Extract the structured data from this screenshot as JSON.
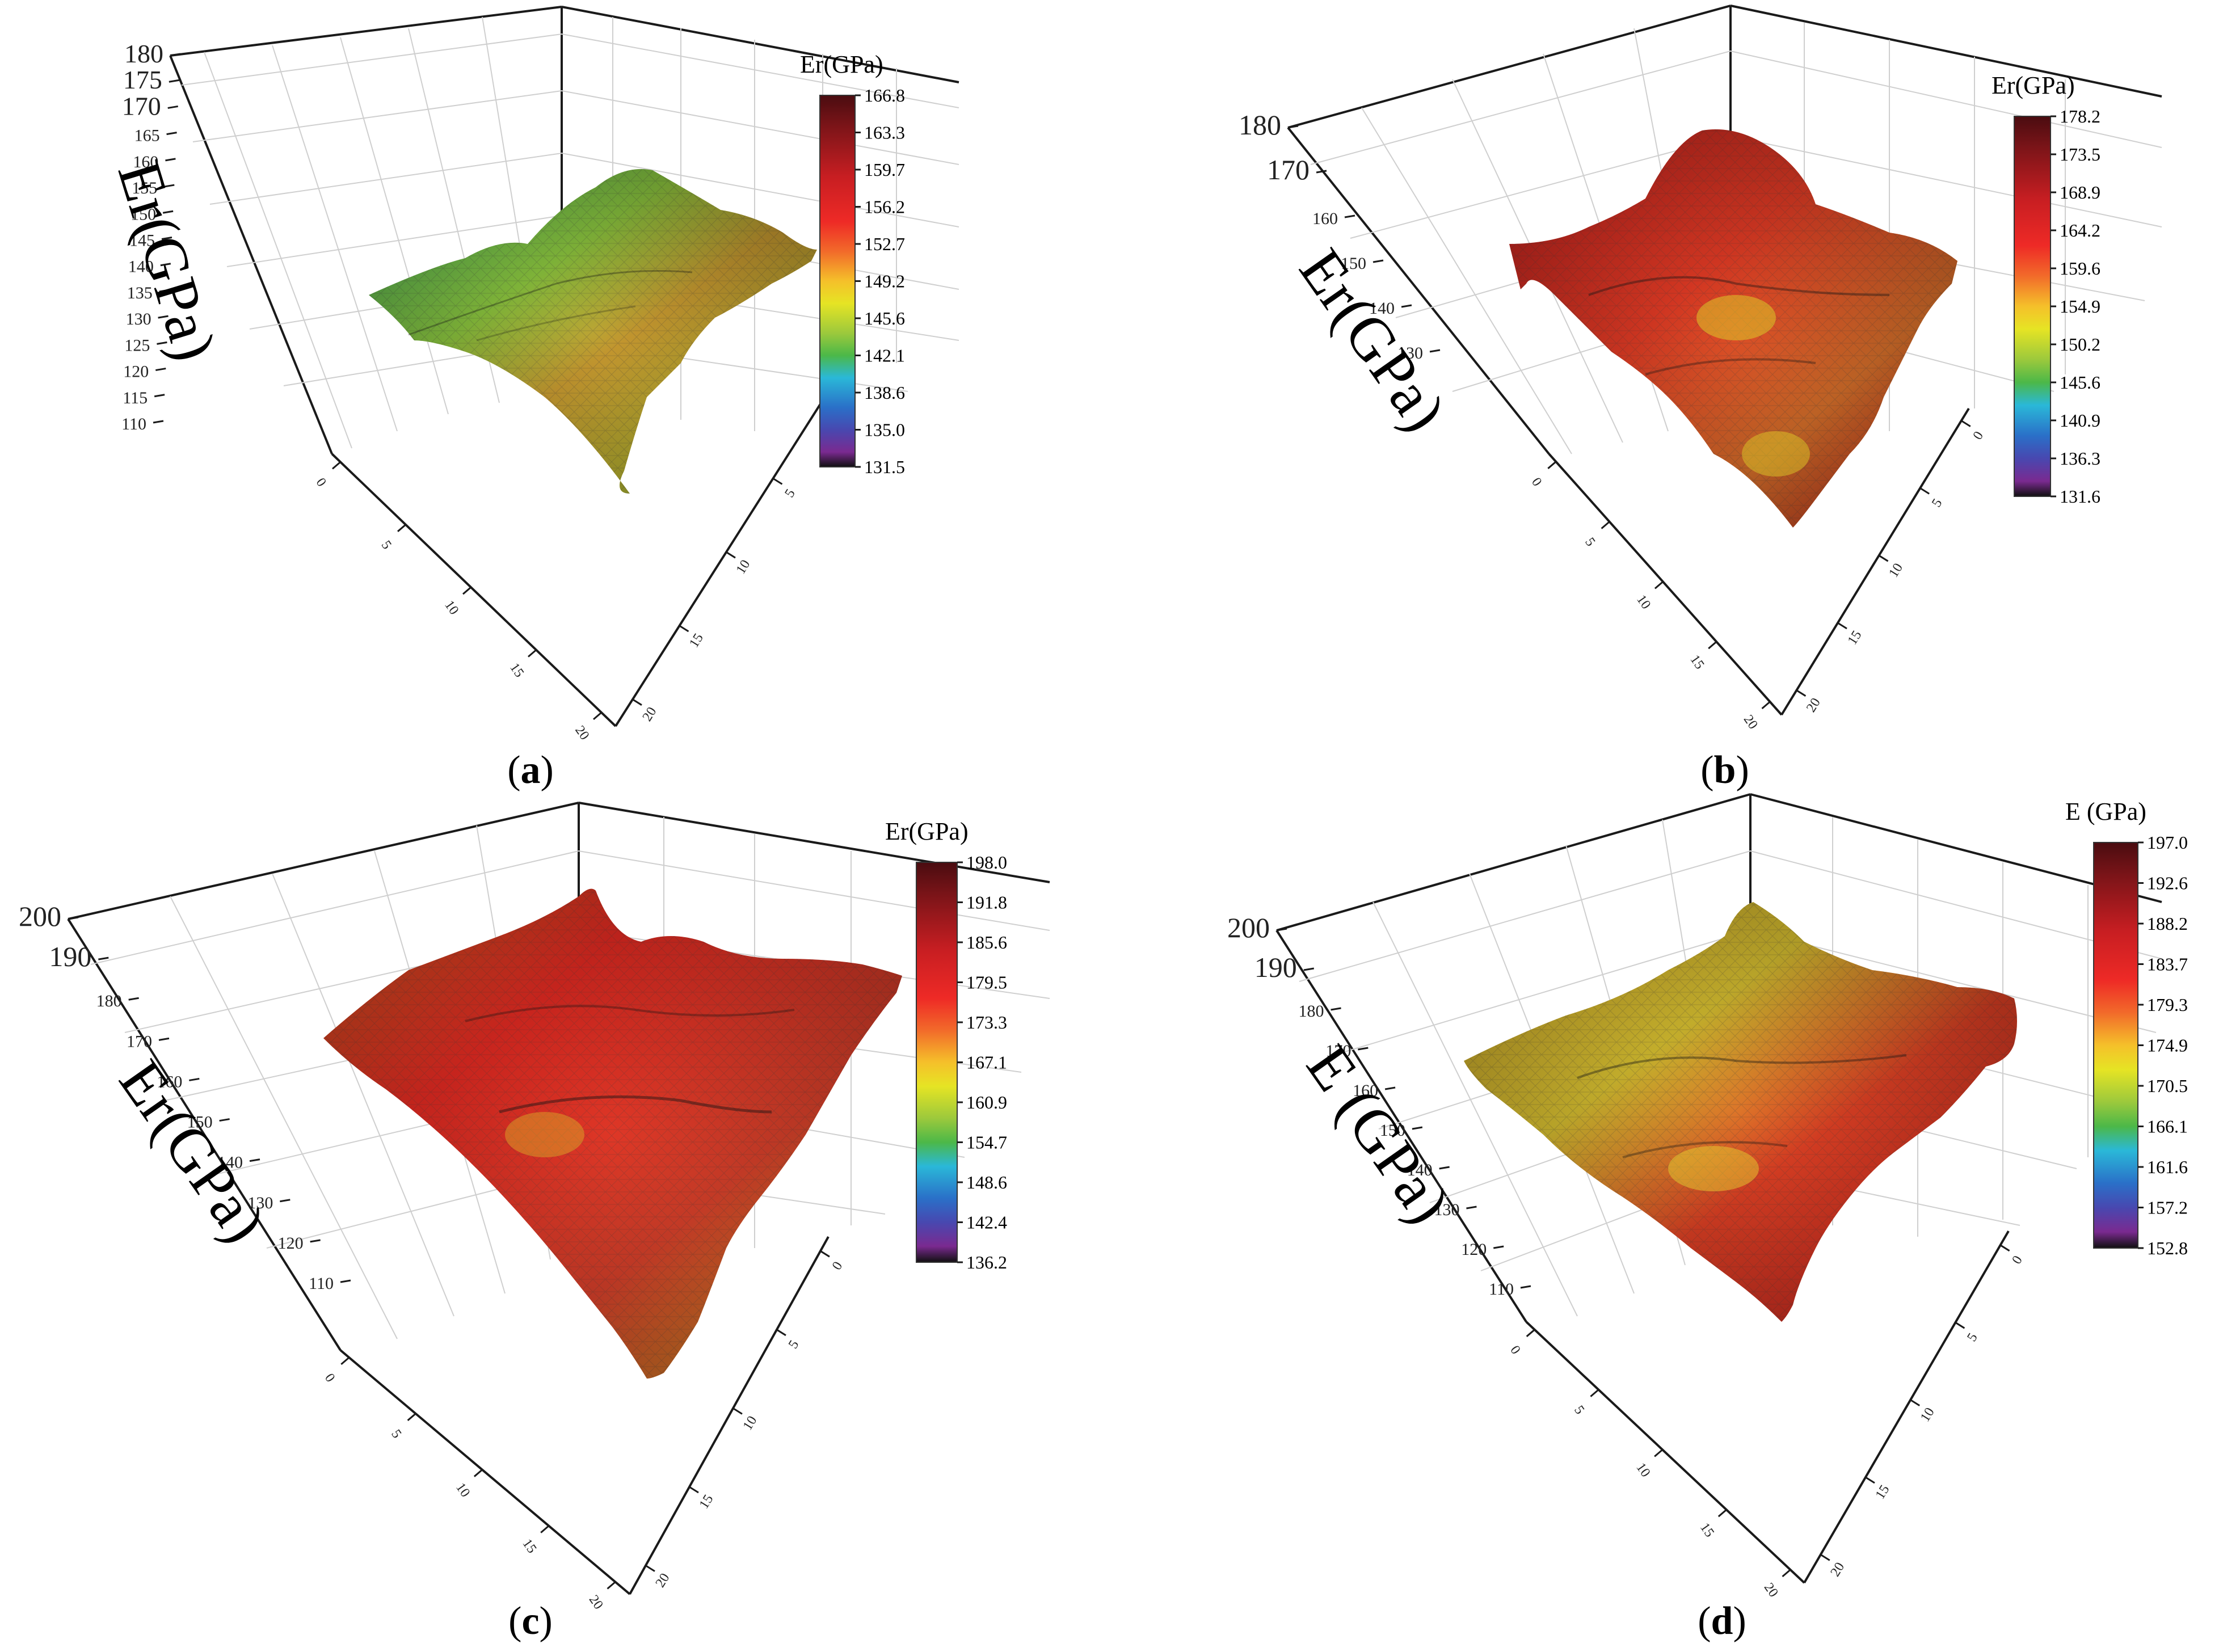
{
  "chart_data": [
    {
      "panel_label": "a",
      "type": "surface3d",
      "zlabel": "Er(GPa)",
      "colorbar_title": "Er(GPa)",
      "z_ticks": [
        "110",
        "115",
        "120",
        "125",
        "130",
        "135",
        "140",
        "145",
        "150",
        "155",
        "160",
        "165",
        "170",
        "175",
        "180"
      ],
      "x_ticks": [
        "0",
        "5",
        "10",
        "15",
        "20"
      ],
      "y_ticks": [
        "0",
        "5",
        "10",
        "15",
        "20"
      ],
      "colorbar_ticks": [
        "166.8",
        "163.3",
        "159.7",
        "156.2",
        "152.7",
        "149.2",
        "145.6",
        "142.1",
        "138.6",
        "135.0",
        "131.5"
      ],
      "zrange": [
        110,
        180
      ],
      "surface_range": [
        131.5,
        166.8
      ]
    },
    {
      "panel_label": "b",
      "type": "surface3d",
      "zlabel": "Er(GPa)",
      "colorbar_title": "Er(GPa)",
      "z_ticks": [
        "130",
        "140",
        "150",
        "160",
        "170",
        "180"
      ],
      "x_ticks": [
        "0",
        "5",
        "10",
        "15",
        "20"
      ],
      "y_ticks": [
        "0",
        "5",
        "10",
        "15",
        "20"
      ],
      "colorbar_ticks": [
        "178.2",
        "173.5",
        "168.9",
        "164.2",
        "159.6",
        "154.9",
        "150.2",
        "145.6",
        "140.9",
        "136.3",
        "131.6"
      ],
      "zrange": [
        130,
        180
      ],
      "surface_range": [
        131.6,
        178.2
      ]
    },
    {
      "panel_label": "c",
      "type": "surface3d",
      "zlabel": "Er(GPa)",
      "colorbar_title": "Er(GPa)",
      "z_ticks": [
        "110",
        "120",
        "130",
        "140",
        "150",
        "160",
        "170",
        "180",
        "190",
        "200"
      ],
      "x_ticks": [
        "0",
        "5",
        "10",
        "15",
        "20"
      ],
      "y_ticks": [
        "0",
        "5",
        "10",
        "15",
        "20"
      ],
      "colorbar_ticks": [
        "198.0",
        "191.8",
        "185.6",
        "179.5",
        "173.3",
        "167.1",
        "160.9",
        "154.7",
        "148.6",
        "142.4",
        "136.2"
      ],
      "zrange": [
        110,
        200
      ],
      "surface_range": [
        136.2,
        198.0
      ]
    },
    {
      "panel_label": "d",
      "type": "surface3d",
      "zlabel": "E (GPa)",
      "colorbar_title": "E (GPa)",
      "z_ticks": [
        "110",
        "120",
        "130",
        "140",
        "150",
        "160",
        "170",
        "180",
        "190",
        "200"
      ],
      "x_ticks": [
        "0",
        "5",
        "10",
        "15",
        "20"
      ],
      "y_ticks": [
        "0",
        "5",
        "10",
        "15",
        "20"
      ],
      "colorbar_ticks": [
        "197.0",
        "192.6",
        "188.2",
        "183.7",
        "179.3",
        "174.9",
        "170.5",
        "166.1",
        "161.6",
        "157.2",
        "152.8"
      ],
      "zrange": [
        110,
        200
      ],
      "surface_range": [
        152.8,
        197.0
      ]
    }
  ],
  "colormap": [
    "#5a0f14",
    "#8c1a1a",
    "#c42020",
    "#e8262a",
    "#f0552a",
    "#f5a623",
    "#e8e020",
    "#8cc63e",
    "#3cb44b",
    "#29b6e8",
    "#2b5fbf",
    "#5a3aa0",
    "#7a2a8c",
    "#1a1a1a"
  ]
}
